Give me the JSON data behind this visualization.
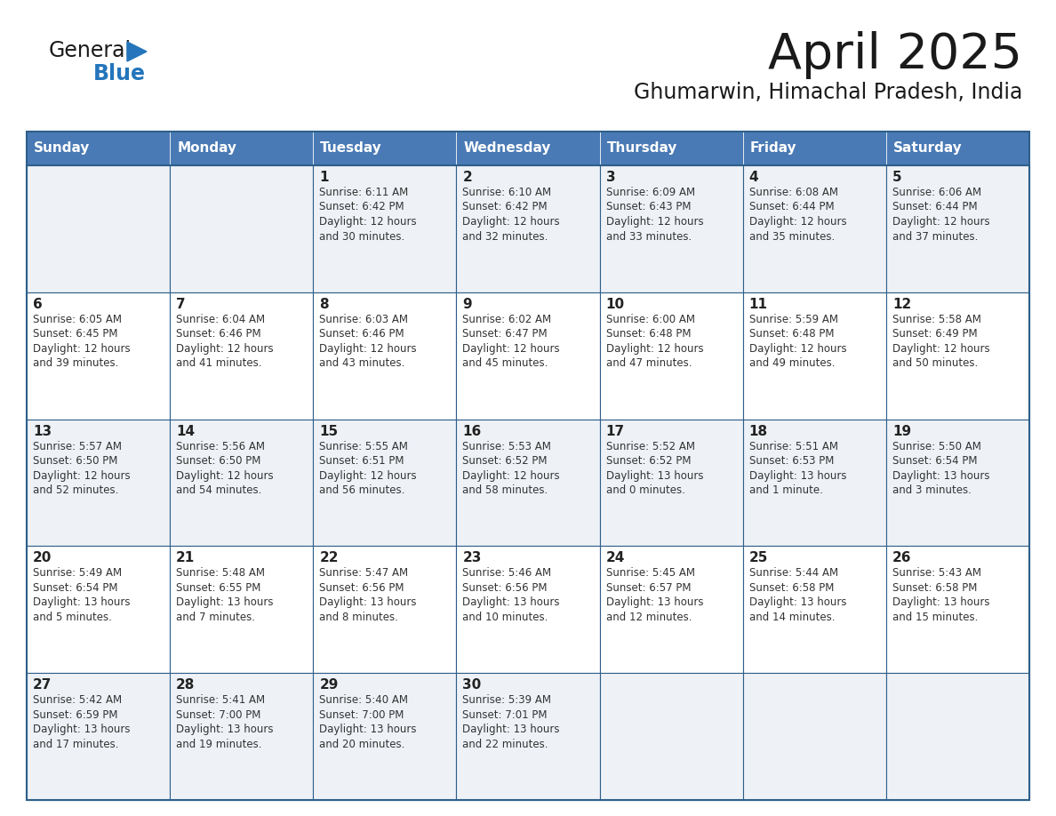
{
  "title": "April 2025",
  "subtitle": "Ghumarwin, Himachal Pradesh, India",
  "header_bg_color": "#4a7ab5",
  "header_text_color": "#ffffff",
  "weekdays": [
    "Sunday",
    "Monday",
    "Tuesday",
    "Wednesday",
    "Thursday",
    "Friday",
    "Saturday"
  ],
  "row_bg_even": "#eef2f7",
  "row_bg_odd": "#ffffff",
  "cell_border_color": "#2e5f8a",
  "day_number_color": "#222222",
  "cell_text_color": "#333333",
  "title_color": "#1a1a1a",
  "subtitle_color": "#1a1a1a",
  "logo_general_color": "#1a1a1a",
  "logo_blue_color": "#2475bb",
  "logo_triangle_color": "#2475bb",
  "calendar": [
    [
      {
        "day": "",
        "info": ""
      },
      {
        "day": "",
        "info": ""
      },
      {
        "day": "1",
        "info": "Sunrise: 6:11 AM\nSunset: 6:42 PM\nDaylight: 12 hours\nand 30 minutes."
      },
      {
        "day": "2",
        "info": "Sunrise: 6:10 AM\nSunset: 6:42 PM\nDaylight: 12 hours\nand 32 minutes."
      },
      {
        "day": "3",
        "info": "Sunrise: 6:09 AM\nSunset: 6:43 PM\nDaylight: 12 hours\nand 33 minutes."
      },
      {
        "day": "4",
        "info": "Sunrise: 6:08 AM\nSunset: 6:44 PM\nDaylight: 12 hours\nand 35 minutes."
      },
      {
        "day": "5",
        "info": "Sunrise: 6:06 AM\nSunset: 6:44 PM\nDaylight: 12 hours\nand 37 minutes."
      }
    ],
    [
      {
        "day": "6",
        "info": "Sunrise: 6:05 AM\nSunset: 6:45 PM\nDaylight: 12 hours\nand 39 minutes."
      },
      {
        "day": "7",
        "info": "Sunrise: 6:04 AM\nSunset: 6:46 PM\nDaylight: 12 hours\nand 41 minutes."
      },
      {
        "day": "8",
        "info": "Sunrise: 6:03 AM\nSunset: 6:46 PM\nDaylight: 12 hours\nand 43 minutes."
      },
      {
        "day": "9",
        "info": "Sunrise: 6:02 AM\nSunset: 6:47 PM\nDaylight: 12 hours\nand 45 minutes."
      },
      {
        "day": "10",
        "info": "Sunrise: 6:00 AM\nSunset: 6:48 PM\nDaylight: 12 hours\nand 47 minutes."
      },
      {
        "day": "11",
        "info": "Sunrise: 5:59 AM\nSunset: 6:48 PM\nDaylight: 12 hours\nand 49 minutes."
      },
      {
        "day": "12",
        "info": "Sunrise: 5:58 AM\nSunset: 6:49 PM\nDaylight: 12 hours\nand 50 minutes."
      }
    ],
    [
      {
        "day": "13",
        "info": "Sunrise: 5:57 AM\nSunset: 6:50 PM\nDaylight: 12 hours\nand 52 minutes."
      },
      {
        "day": "14",
        "info": "Sunrise: 5:56 AM\nSunset: 6:50 PM\nDaylight: 12 hours\nand 54 minutes."
      },
      {
        "day": "15",
        "info": "Sunrise: 5:55 AM\nSunset: 6:51 PM\nDaylight: 12 hours\nand 56 minutes."
      },
      {
        "day": "16",
        "info": "Sunrise: 5:53 AM\nSunset: 6:52 PM\nDaylight: 12 hours\nand 58 minutes."
      },
      {
        "day": "17",
        "info": "Sunrise: 5:52 AM\nSunset: 6:52 PM\nDaylight: 13 hours\nand 0 minutes."
      },
      {
        "day": "18",
        "info": "Sunrise: 5:51 AM\nSunset: 6:53 PM\nDaylight: 13 hours\nand 1 minute."
      },
      {
        "day": "19",
        "info": "Sunrise: 5:50 AM\nSunset: 6:54 PM\nDaylight: 13 hours\nand 3 minutes."
      }
    ],
    [
      {
        "day": "20",
        "info": "Sunrise: 5:49 AM\nSunset: 6:54 PM\nDaylight: 13 hours\nand 5 minutes."
      },
      {
        "day": "21",
        "info": "Sunrise: 5:48 AM\nSunset: 6:55 PM\nDaylight: 13 hours\nand 7 minutes."
      },
      {
        "day": "22",
        "info": "Sunrise: 5:47 AM\nSunset: 6:56 PM\nDaylight: 13 hours\nand 8 minutes."
      },
      {
        "day": "23",
        "info": "Sunrise: 5:46 AM\nSunset: 6:56 PM\nDaylight: 13 hours\nand 10 minutes."
      },
      {
        "day": "24",
        "info": "Sunrise: 5:45 AM\nSunset: 6:57 PM\nDaylight: 13 hours\nand 12 minutes."
      },
      {
        "day": "25",
        "info": "Sunrise: 5:44 AM\nSunset: 6:58 PM\nDaylight: 13 hours\nand 14 minutes."
      },
      {
        "day": "26",
        "info": "Sunrise: 5:43 AM\nSunset: 6:58 PM\nDaylight: 13 hours\nand 15 minutes."
      }
    ],
    [
      {
        "day": "27",
        "info": "Sunrise: 5:42 AM\nSunset: 6:59 PM\nDaylight: 13 hours\nand 17 minutes."
      },
      {
        "day": "28",
        "info": "Sunrise: 5:41 AM\nSunset: 7:00 PM\nDaylight: 13 hours\nand 19 minutes."
      },
      {
        "day": "29",
        "info": "Sunrise: 5:40 AM\nSunset: 7:00 PM\nDaylight: 13 hours\nand 20 minutes."
      },
      {
        "day": "30",
        "info": "Sunrise: 5:39 AM\nSunset: 7:01 PM\nDaylight: 13 hours\nand 22 minutes."
      },
      {
        "day": "",
        "info": ""
      },
      {
        "day": "",
        "info": ""
      },
      {
        "day": "",
        "info": ""
      }
    ]
  ]
}
